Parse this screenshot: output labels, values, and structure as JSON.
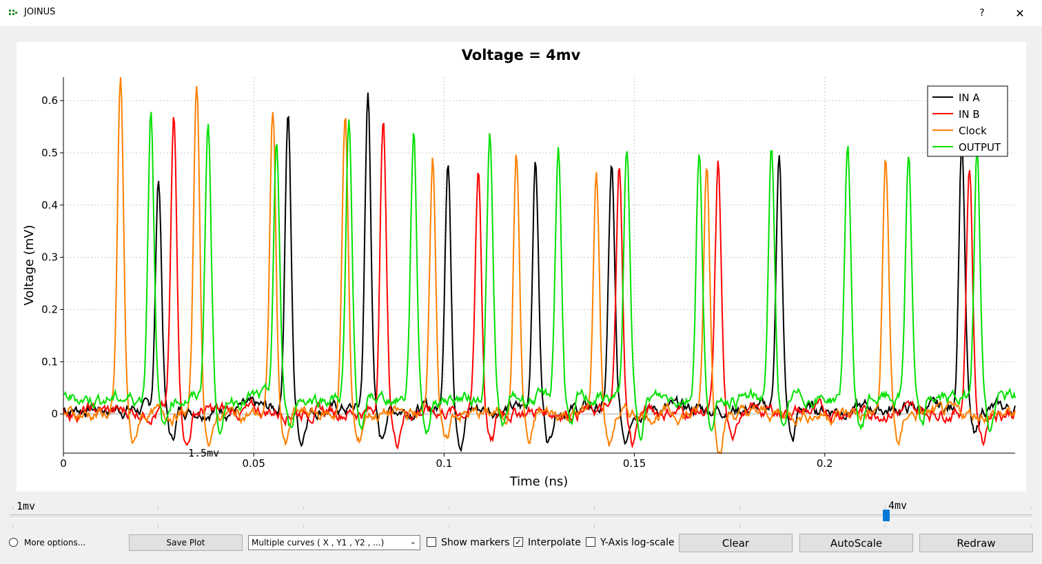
{
  "window": {
    "title": "JOINUS",
    "help_label": "?",
    "close_label": "✕"
  },
  "colors": {
    "in_a": "#000000",
    "in_b": "#ff0000",
    "clock": "#ff8000",
    "output": "#00e000",
    "slider": "#0078d7"
  },
  "chart_data": {
    "type": "line",
    "title": "Voltage = 4mv",
    "xlabel": "Time (ns)",
    "ylabel": "Voltage (mV)",
    "xlim": [
      0,
      0.25
    ],
    "ylim": [
      -0.075,
      0.645
    ],
    "xticks": [
      0,
      0.05,
      0.1,
      0.15,
      0.2
    ],
    "xtick_labels": [
      "0",
      "0.05",
      "0.1",
      "0.15",
      "0.2"
    ],
    "yticks": [
      0,
      0.1,
      0.2,
      0.3,
      0.4,
      0.5,
      0.6
    ],
    "ytick_labels": [
      "0",
      "0.1",
      "0.2",
      "0.3",
      "0.4",
      "0.5",
      "0.6"
    ],
    "grid": true,
    "legend_position": "top-right",
    "annotation": "1.5mv",
    "series": [
      {
        "name": "IN A",
        "color": "#000000",
        "baseline": 0.01,
        "peaks": [
          [
            0.025,
            0.45
          ],
          [
            0.059,
            0.58
          ],
          [
            0.08,
            0.61
          ],
          [
            0.101,
            0.49
          ],
          [
            0.124,
            0.49
          ],
          [
            0.144,
            0.47
          ],
          [
            0.188,
            0.49
          ],
          [
            0.236,
            0.53
          ]
        ]
      },
      {
        "name": "IN B",
        "color": "#ff0000",
        "baseline": 0.005,
        "peaks": [
          [
            0.029,
            0.56
          ],
          [
            0.084,
            0.57
          ],
          [
            0.109,
            0.47
          ],
          [
            0.146,
            0.48
          ],
          [
            0.172,
            0.47
          ],
          [
            0.238,
            0.48
          ]
        ]
      },
      {
        "name": "Clock",
        "color": "#ff8000",
        "baseline": 0.0,
        "peaks": [
          [
            0.015,
            0.64
          ],
          [
            0.035,
            0.64
          ],
          [
            0.055,
            0.58
          ],
          [
            0.074,
            0.58
          ],
          [
            0.097,
            0.5
          ],
          [
            0.119,
            0.5
          ],
          [
            0.14,
            0.46
          ],
          [
            0.169,
            0.48
          ],
          [
            0.216,
            0.49
          ]
        ]
      },
      {
        "name": "OUTPUT",
        "color": "#00e000",
        "baseline": 0.03,
        "peaks": [
          [
            0.023,
            0.59
          ],
          [
            0.038,
            0.56
          ],
          [
            0.056,
            0.51
          ],
          [
            0.075,
            0.55
          ],
          [
            0.092,
            0.54
          ],
          [
            0.112,
            0.53
          ],
          [
            0.13,
            0.51
          ],
          [
            0.148,
            0.51
          ],
          [
            0.167,
            0.51
          ],
          [
            0.186,
            0.5
          ],
          [
            0.206,
            0.52
          ],
          [
            0.222,
            0.5
          ],
          [
            0.24,
            0.51
          ]
        ]
      }
    ]
  },
  "slider": {
    "min_label": "1mv",
    "max_label": "4mv",
    "value": 4,
    "min": 1,
    "max": 4.5
  },
  "controls": {
    "more_options_label": "More options...",
    "save_plot_label": "Save Plot",
    "mode_select_value": "Multiple curves ( X , Y1 , Y2 , ...)",
    "show_markers_label": "Show markers",
    "show_markers_checked": false,
    "interpolate_label": "Interpolate",
    "interpolate_checked": true,
    "ylog_label": "Y-Axis log-scale",
    "ylog_checked": false,
    "clear_label": "Clear",
    "autoscale_label": "AutoScale",
    "redraw_label": "Redraw",
    "check_mark": "✓"
  }
}
